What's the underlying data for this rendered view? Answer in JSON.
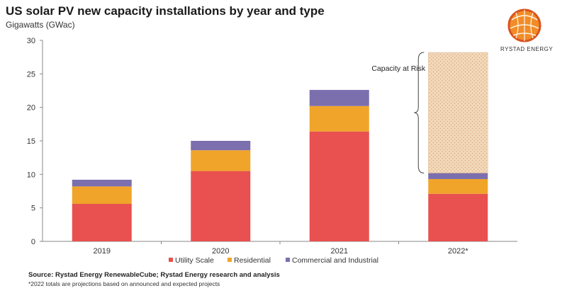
{
  "header": {
    "title": "US solar PV new capacity installations by year and type",
    "subtitle": "Gigawatts (GWac)"
  },
  "brand": {
    "logo_text": "RYSTAD ENERGY"
  },
  "footer": {
    "source": "Source: Rystad Energy RenewableCube; Rystad Energy research and analysis",
    "note": "*2022 totals are projections based on announced and expected projects"
  },
  "chart_data": {
    "type": "bar",
    "stacked": true,
    "categories": [
      "2019",
      "2020",
      "2021",
      "2022*"
    ],
    "series": [
      {
        "name": "Utility Scale",
        "color": "#e8514f",
        "values": [
          5.6,
          10.5,
          16.4,
          7.1
        ]
      },
      {
        "name": "Residential",
        "color": "#f0a429",
        "values": [
          2.6,
          3.1,
          3.8,
          2.2
        ]
      },
      {
        "name": "Commercial and Industrial",
        "color": "#7b6fae",
        "values": [
          1.0,
          1.4,
          2.4,
          0.9
        ]
      }
    ],
    "risk": {
      "category": "2022*",
      "label": "Capacity at Risk",
      "from": 10.2,
      "to": 28.2,
      "fill": "#f3d9bb"
    },
    "ylim": [
      0,
      30
    ],
    "yticks": [
      0,
      5,
      10,
      15,
      20,
      25,
      30
    ],
    "grid": false,
    "legend": "bottom"
  }
}
